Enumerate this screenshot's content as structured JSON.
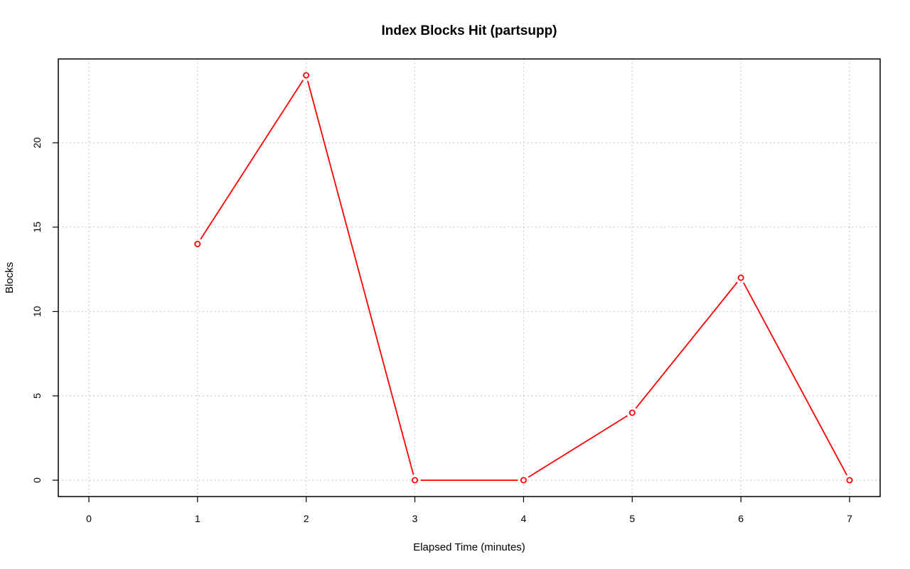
{
  "chart_data": {
    "type": "line",
    "title": "Index Blocks Hit (partsupp)",
    "xlabel": "Elapsed Time (minutes)",
    "ylabel": "Blocks",
    "xlim": [
      0,
      7
    ],
    "ylim": [
      0,
      24
    ],
    "x_ticks": [
      "0",
      "1",
      "2",
      "3",
      "4",
      "5",
      "6",
      "7"
    ],
    "y_ticks": [
      "0",
      "5",
      "10",
      "15",
      "20"
    ],
    "grid": true,
    "series": [
      {
        "x": [
          1,
          2,
          3,
          4,
          5,
          6,
          7
        ],
        "values": [
          14,
          24,
          0,
          0,
          4,
          12,
          0
        ],
        "color": "#ff0000"
      }
    ]
  }
}
